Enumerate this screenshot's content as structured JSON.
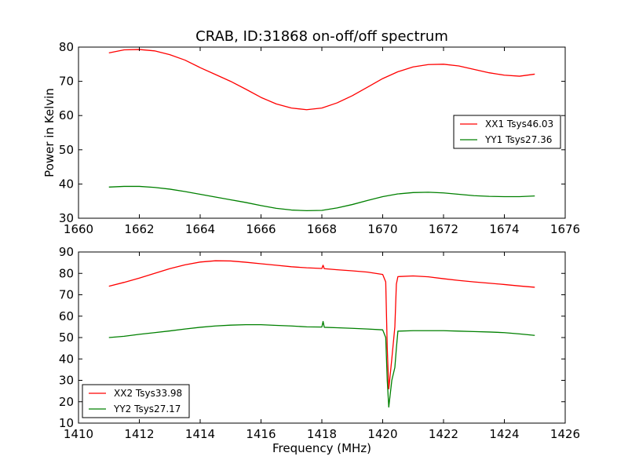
{
  "title": "CRAB, ID:31868 on-off/off spectrum",
  "chart_data": [
    {
      "type": "line",
      "ylabel": "Power in Kelvin",
      "xlabel": "",
      "xlim": [
        1660,
        1676
      ],
      "ylim": [
        30,
        80
      ],
      "xticks": [
        1660,
        1662,
        1664,
        1666,
        1668,
        1670,
        1672,
        1674,
        1676
      ],
      "yticks": [
        30,
        40,
        50,
        60,
        70,
        80
      ],
      "grid": false,
      "legend": "center-right",
      "series": [
        {
          "name": "XX1 Tsys46.03",
          "color": "#ff0000",
          "x": [
            1661.0,
            1661.5,
            1662.0,
            1662.5,
            1663.0,
            1663.5,
            1664.0,
            1664.5,
            1665.0,
            1665.5,
            1666.0,
            1666.5,
            1667.0,
            1667.5,
            1668.0,
            1668.5,
            1669.0,
            1669.5,
            1670.0,
            1670.5,
            1671.0,
            1671.5,
            1672.0,
            1672.5,
            1673.0,
            1673.5,
            1674.0,
            1674.5,
            1675.0
          ],
          "y": [
            78.3,
            79.2,
            79.3,
            78.9,
            77.8,
            76.2,
            74.0,
            72.0,
            70.0,
            67.7,
            65.3,
            63.4,
            62.2,
            61.7,
            62.2,
            63.7,
            65.8,
            68.3,
            70.8,
            72.8,
            74.2,
            74.9,
            75.0,
            74.5,
            73.5,
            72.5,
            71.8,
            71.5,
            72.1
          ]
        },
        {
          "name": "YY1 Tsys27.36",
          "color": "#008000",
          "x": [
            1661.0,
            1661.5,
            1662.0,
            1662.5,
            1663.0,
            1663.5,
            1664.0,
            1664.5,
            1665.0,
            1665.5,
            1666.0,
            1666.5,
            1667.0,
            1667.5,
            1668.0,
            1668.5,
            1669.0,
            1669.5,
            1670.0,
            1670.5,
            1671.0,
            1671.5,
            1672.0,
            1672.5,
            1673.0,
            1673.5,
            1674.0,
            1674.5,
            1675.0
          ],
          "y": [
            39.1,
            39.3,
            39.3,
            39.0,
            38.5,
            37.8,
            37.0,
            36.2,
            35.4,
            34.6,
            33.7,
            32.9,
            32.4,
            32.2,
            32.3,
            33.0,
            34.0,
            35.2,
            36.3,
            37.1,
            37.5,
            37.6,
            37.4,
            37.0,
            36.6,
            36.4,
            36.3,
            36.3,
            36.5
          ]
        }
      ]
    },
    {
      "type": "line",
      "ylabel": "",
      "xlabel": "Frequency (MHz)",
      "xlim": [
        1410,
        1426
      ],
      "ylim": [
        10,
        90
      ],
      "xticks": [
        1410,
        1412,
        1414,
        1416,
        1418,
        1420,
        1422,
        1424,
        1426
      ],
      "yticks": [
        10,
        20,
        30,
        40,
        50,
        60,
        70,
        80,
        90
      ],
      "grid": false,
      "legend": "lower-left",
      "series": [
        {
          "name": "XX2 Tsys33.98",
          "color": "#ff0000",
          "x": [
            1411.0,
            1411.5,
            1412.0,
            1412.5,
            1413.0,
            1413.5,
            1414.0,
            1414.5,
            1415.0,
            1415.5,
            1416.0,
            1416.5,
            1417.0,
            1417.5,
            1418.0,
            1418.04,
            1418.08,
            1418.5,
            1419.0,
            1419.5,
            1420.0,
            1420.1,
            1420.15,
            1420.2,
            1420.3,
            1420.4,
            1420.45,
            1420.5,
            1421.0,
            1421.5,
            1422.0,
            1422.5,
            1423.0,
            1423.5,
            1424.0,
            1424.5,
            1425.0
          ],
          "y": [
            74.0,
            75.8,
            77.8,
            80.0,
            82.2,
            84.0,
            85.3,
            85.9,
            85.8,
            85.2,
            84.5,
            83.8,
            83.1,
            82.6,
            82.3,
            83.8,
            82.2,
            81.7,
            81.2,
            80.6,
            79.5,
            76.0,
            45.0,
            26.0,
            40.0,
            55.0,
            75.0,
            78.5,
            78.8,
            78.4,
            77.5,
            76.7,
            76.0,
            75.4,
            74.8,
            74.1,
            73.5
          ]
        },
        {
          "name": "YY2 Tsys27.17",
          "color": "#008000",
          "x": [
            1411.0,
            1411.5,
            1412.0,
            1412.5,
            1413.0,
            1413.5,
            1414.0,
            1414.5,
            1415.0,
            1415.5,
            1416.0,
            1416.5,
            1417.0,
            1417.5,
            1418.0,
            1418.04,
            1418.08,
            1418.5,
            1419.0,
            1419.5,
            1420.0,
            1420.1,
            1420.15,
            1420.2,
            1420.3,
            1420.4,
            1420.45,
            1420.5,
            1421.0,
            1421.5,
            1422.0,
            1422.5,
            1423.0,
            1423.5,
            1424.0,
            1424.5,
            1425.0
          ],
          "y": [
            50.0,
            50.6,
            51.5,
            52.3,
            53.1,
            54.0,
            54.8,
            55.4,
            55.8,
            56.0,
            56.0,
            55.7,
            55.4,
            55.0,
            54.9,
            57.5,
            54.8,
            54.6,
            54.3,
            54.0,
            53.6,
            50.0,
            30.0,
            17.5,
            30.0,
            36.0,
            45.0,
            53.0,
            53.2,
            53.2,
            53.2,
            53.0,
            52.8,
            52.6,
            52.3,
            51.7,
            51.0
          ]
        }
      ]
    }
  ]
}
